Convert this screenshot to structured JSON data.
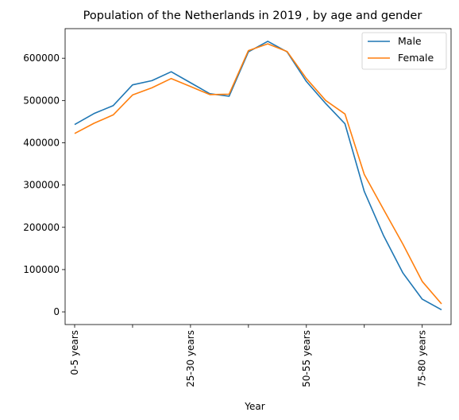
{
  "chart_data": {
    "type": "line",
    "title": "Population of the Netherlands in 2019 , by age and gender",
    "xlabel": "Year",
    "ylabel": "",
    "x_tick_labels": [
      "0-5 years",
      "",
      "25-30 years",
      "",
      "50-55 years",
      "",
      "75-80 years",
      ""
    ],
    "categories": [
      "0-5 years",
      "5-10 years",
      "10-15 years",
      "15-20 years",
      "20-25 years",
      "25-30 years",
      "30-35 years",
      "35-40 years",
      "40-45 years",
      "45-50 years",
      "50-55 years",
      "55-60 years",
      "60-65 years",
      "65-70 years",
      "70-75 years",
      "75-80 years",
      "80-85 years",
      "85-90 years",
      "90-95 years",
      "95-100 years"
    ],
    "series": [
      {
        "name": "Male",
        "color": "#1f77b4",
        "values": [
          443000,
          469000,
          488000,
          537000,
          547000,
          568000,
          542000,
          516000,
          510000,
          615000,
          640000,
          615000,
          545000,
          493000,
          445000,
          285000,
          180000,
          92000,
          30000,
          5000
        ]
      },
      {
        "name": "Female",
        "color": "#ff7f0e",
        "values": [
          422000,
          446000,
          466000,
          513000,
          530000,
          552000,
          533000,
          514000,
          515000,
          618000,
          634000,
          616000,
          552000,
          500000,
          468000,
          325000,
          242000,
          160000,
          72000,
          19000
        ]
      }
    ],
    "y_ticks": [
      0,
      100000,
      200000,
      300000,
      400000,
      500000,
      600000
    ],
    "ylim": [
      -30000,
      670000
    ],
    "grid": false,
    "legend_position": "top-right"
  }
}
